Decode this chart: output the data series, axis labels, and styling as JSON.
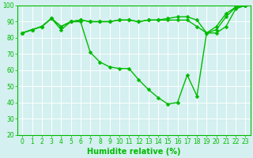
{
  "xlabel": "Humidite relative (%)",
  "background_color": "#d4f0f0",
  "grid_color": "#b8d8d8",
  "line_color": "#00bb00",
  "series": {
    "line1": [
      83,
      85,
      87,
      92,
      85,
      90,
      90,
      71,
      65,
      62,
      61,
      61,
      54,
      48,
      43,
      39,
      40,
      57,
      44,
      83,
      83,
      87,
      98,
      100
    ],
    "line2": [
      83,
      85,
      87,
      92,
      87,
      90,
      91,
      90,
      90,
      90,
      91,
      91,
      90,
      91,
      91,
      91,
      91,
      91,
      87,
      83,
      85,
      93,
      99,
      100
    ],
    "line3": [
      83,
      85,
      87,
      92,
      87,
      90,
      91,
      90,
      90,
      90,
      91,
      91,
      90,
      91,
      91,
      92,
      93,
      93,
      91,
      83,
      87,
      95,
      99,
      100
    ]
  },
  "x": [
    0,
    1,
    2,
    3,
    4,
    5,
    6,
    7,
    8,
    9,
    10,
    11,
    12,
    13,
    14,
    15,
    16,
    17,
    18,
    19,
    20,
    21,
    22,
    23
  ],
  "ylim": [
    20,
    100
  ],
  "yticks": [
    20,
    30,
    40,
    50,
    60,
    70,
    80,
    90,
    100
  ],
  "xlim": [
    -0.5,
    23.5
  ],
  "marker": "D",
  "markersize": 2.5,
  "linewidth": 1.0,
  "tick_fontsize": 5.5,
  "label_fontsize": 7.0,
  "fig_width": 3.2,
  "fig_height": 2.0,
  "dpi": 100
}
